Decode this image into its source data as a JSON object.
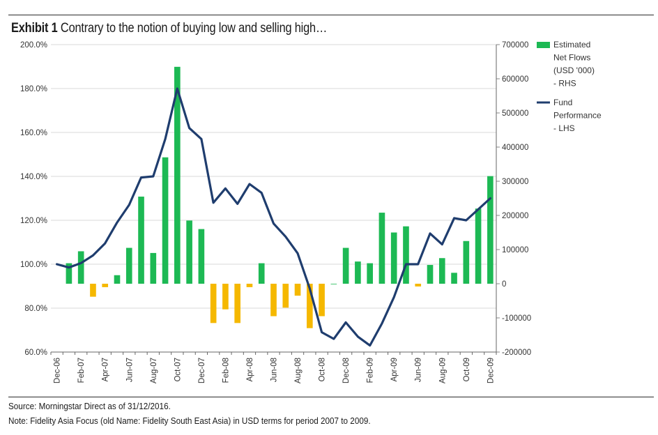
{
  "header": {
    "exhibit_label": "Exhibit 1",
    "title": "Contrary to the notion of buying low and selling high…"
  },
  "footer": {
    "source": "Source: Morningstar Direct as of 31/12/2016.",
    "note": "Note: Fidelity Asia Focus (old Name: Fidelity South East Asia) in USD terms for period 2007 to 2009."
  },
  "colors": {
    "inflow_bar": "#1db954",
    "outflow_bar": "#f5b800",
    "performance_line": "#1f3d6e",
    "grid": "#d9d9d9"
  },
  "chart_data": {
    "type": "bar",
    "categories": [
      "Dec-06",
      "Jan-07",
      "Feb-07",
      "Mar-07",
      "Apr-07",
      "May-07",
      "Jun-07",
      "Jul-07",
      "Aug-07",
      "Sep-07",
      "Oct-07",
      "Nov-07",
      "Dec-07",
      "Jan-08",
      "Feb-08",
      "Mar-08",
      "Apr-08",
      "May-08",
      "Jun-08",
      "Jul-08",
      "Aug-08",
      "Sep-08",
      "Oct-08",
      "Nov-08",
      "Dec-08",
      "Jan-09",
      "Feb-09",
      "Mar-09",
      "Apr-09",
      "May-09",
      "Jun-09",
      "Jul-09",
      "Aug-09",
      "Sep-09",
      "Oct-09",
      "Nov-09",
      "Dec-09"
    ],
    "x_tick_labels": [
      "Dec-06",
      "Feb-07",
      "Apr-07",
      "Jun-07",
      "Aug-07",
      "Oct-07",
      "Dec-07",
      "Feb-08",
      "Apr-08",
      "Jun-08",
      "Aug-08",
      "Oct-08",
      "Dec-08",
      "Feb-09",
      "Apr-09",
      "Jun-09",
      "Aug-09",
      "Oct-09",
      "Dec-09"
    ],
    "series": [
      {
        "name": "Estimated Net Flows (USD '000) - RHS",
        "type": "bar",
        "axis": "right",
        "values": [
          null,
          60000,
          95000,
          -38000,
          -10000,
          25000,
          105000,
          255000,
          90000,
          370000,
          635000,
          185000,
          160000,
          -115000,
          -75000,
          -115000,
          -10000,
          60000,
          -95000,
          -70000,
          -35000,
          -130000,
          -95000,
          0,
          105000,
          65000,
          60000,
          208000,
          150000,
          168000,
          -8000,
          55000,
          75000,
          32000,
          125000,
          220000,
          315000
        ]
      },
      {
        "name": "Fund Performance - LHS",
        "type": "line",
        "axis": "left",
        "values": [
          100.0,
          98.5,
          100.5,
          104.0,
          109.5,
          119.0,
          127.0,
          139.5,
          140.0,
          157.0,
          180.0,
          162.0,
          157.0,
          128.0,
          134.5,
          127.5,
          136.5,
          132.5,
          118.5,
          112.5,
          105.0,
          89.0,
          69.0,
          66.0,
          73.5,
          67.0,
          63.0,
          73.0,
          85.0,
          100.0,
          100.0,
          114.0,
          109.0,
          121.0,
          120.0,
          125.0,
          130.0
        ]
      }
    ],
    "y_left": {
      "min": 60,
      "max": 200,
      "step": 20,
      "tick_labels": [
        "60.0%",
        "80.0%",
        "100.0%",
        "120.0%",
        "140.0%",
        "160.0%",
        "180.0%",
        "200.0%"
      ]
    },
    "y_right": {
      "min": -200000,
      "max": 700000,
      "step": 100000,
      "tick_labels": [
        "-200000",
        "-100000",
        "0",
        "100000",
        "200000",
        "300000",
        "400000",
        "500000",
        "600000",
        "700000"
      ]
    },
    "legend": {
      "position": "right",
      "items": [
        {
          "key": "flows",
          "lines": [
            "Estimated",
            "Net Flows",
            "(USD '000)",
            "- RHS"
          ]
        },
        {
          "key": "performance",
          "lines": [
            "Fund",
            "Performance",
            "- LHS"
          ]
        }
      ]
    },
    "grid": true
  }
}
